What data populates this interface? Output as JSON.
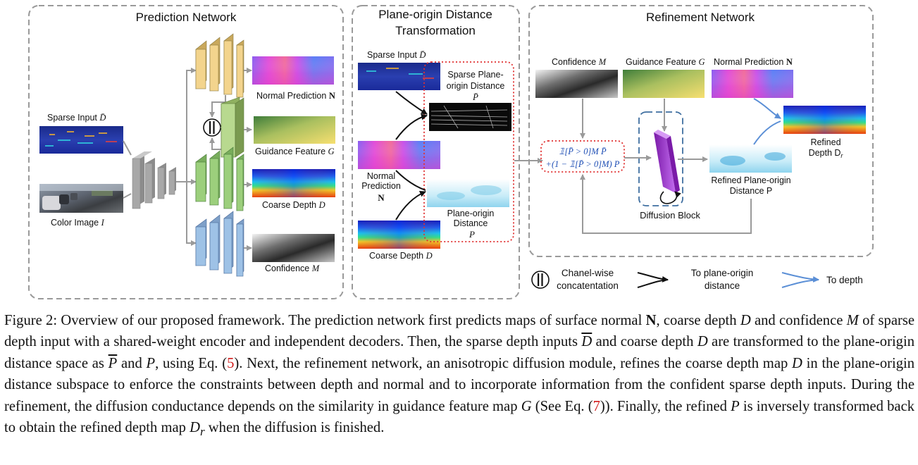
{
  "panels": {
    "prediction": {
      "title": "Prediction Network"
    },
    "transform": {
      "title_line1": "Plane-origin Distance",
      "title_line2": "Transformation"
    },
    "refinement": {
      "title": "Refinement Network"
    }
  },
  "labels": {
    "sparse_input": "Sparse Input",
    "sparse_input_sym": "D̄",
    "color_image": "Color Image",
    "color_image_sym": "I",
    "normal_prediction": "Normal Prediction",
    "normal_sym": "N",
    "guidance_feature": "Guidance Feature",
    "guidance_sym": "G",
    "coarse_depth": "Coarse Depth",
    "coarse_sym": "D",
    "confidence": "Confidence",
    "confidence_sym": "M",
    "sparse_po_line1": "Sparse Plane-",
    "sparse_po_line2": "origin Distance",
    "sparse_po_sym": "P̄",
    "normal_line1": "Normal",
    "normal_line2": "Prediction",
    "po_line1": "Plane-origin",
    "po_line2": "Distance",
    "po_sym": "P",
    "formula_line1": "𝟙[P̄ > 0]M P̄",
    "formula_line2": "+(1 − 𝟙[P̄ > 0]M) P",
    "diffusion_block": "Diffusion Block",
    "refined_po_line1": "Refined Plane-origin",
    "refined_po_line2": "Distance P",
    "refined_depth_line1": "Refined",
    "refined_depth_line2": "Depth D",
    "refined_depth_sub": "r"
  },
  "legend": {
    "concat_line1": "Chanel-wise",
    "concat_line2": "concatentation",
    "to_po_line1": "To plane-origin",
    "to_po_line2": "distance",
    "to_depth": "To depth"
  },
  "caption": {
    "s1": "Figure 2: Overview of our proposed framework. The prediction network first predicts maps of surface normal ",
    "s1_N": "N",
    "s2": ", coarse depth ",
    "s2_D": "D",
    "s3": " and confidence ",
    "s3_M": "M",
    "s4": " of sparse depth input with a shared-weight encoder and independent decoders. Then, the sparse depth inputs ",
    "s4_Dbar": "D",
    "s5": " and coarse depth ",
    "s5_D": "D",
    "s6": " are transformed to the plane-origin distance space as ",
    "s6_Pbar": "P",
    "s7": " and ",
    "s7_P": "P",
    "s8": ", using Eq. (",
    "ref1": "5",
    "s9": "). Next, the refinement network, an anisotropic diffusion module, refines the coarse depth map ",
    "s9_D": "D",
    "s10": " in the plane-origin distance subspace to enforce the constraints between depth and normal and to incorporate information from the confident sparse depth inputs. During the refinement, the diffusion conductance depends on the similarity in guidance feature map ",
    "s10_G": "G",
    "s11": " (See Eq. (",
    "ref2": "7",
    "s12": ")). Finally, the refined ",
    "s12_P": "P",
    "s13": " is inversely transformed back to obtain the refined depth map ",
    "s13_D": "D",
    "s13_sub": "r",
    "s14": " when the diffusion is finished."
  },
  "colors": {
    "panel_border": "#9a9a9a",
    "decoder_normal": "#f3d48d",
    "decoder_guidance": "#b8d98f",
    "decoder_coarse": "#9ccf7c",
    "decoder_conf": "#9ec2e6",
    "encoder": "#a8a8a8",
    "dotted_red": "#e03030",
    "diffusion_purple": "#b24de0",
    "blue_arrow": "#5b8fd6",
    "formula_blue": "#1f4fb5",
    "ref_red": "#d11a1a"
  }
}
